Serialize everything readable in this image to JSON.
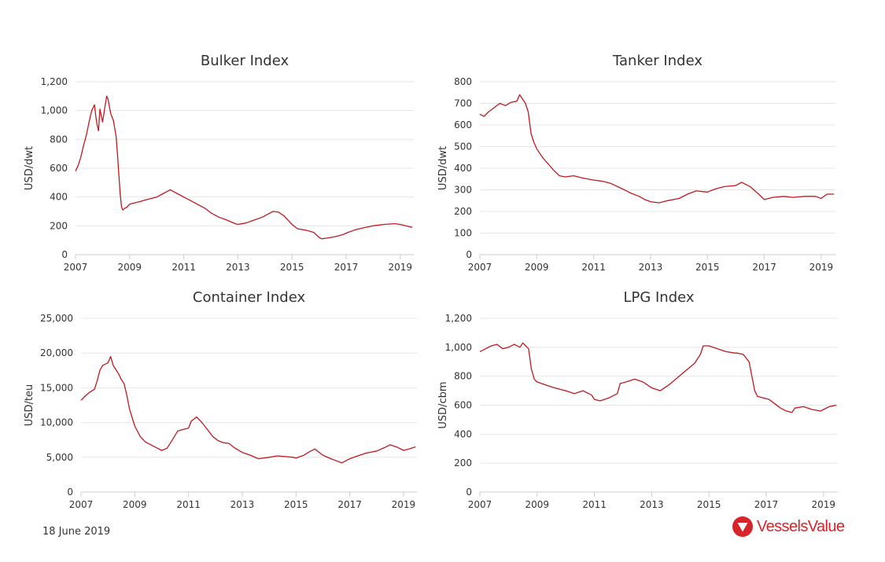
{
  "footer": {
    "date": "18 June 2019",
    "brand": "VesselsValue",
    "brand_color": "#d8232a"
  },
  "colors": {
    "series": "#c0191f",
    "grid": "#e6e6e6"
  },
  "chart_data": [
    {
      "id": "bulker",
      "type": "line",
      "title": "Bulker Index",
      "xlabel": "",
      "ylabel": "USD/dwt",
      "xlim": [
        2007.0,
        2019.5
      ],
      "ylim": [
        0,
        1200
      ],
      "yticks": [
        0,
        200,
        400,
        600,
        800,
        1000,
        1200
      ],
      "ytick_labels": [
        "0",
        "200",
        "400",
        "600",
        "800",
        "1,000",
        "1,200"
      ],
      "xticks": [
        2007,
        2009,
        2011,
        2013,
        2015,
        2017,
        2019
      ],
      "xtick_labels": [
        "2007",
        "2009",
        "2011",
        "2013",
        "2015",
        "2017",
        "2019"
      ],
      "grid": true,
      "series": [
        {
          "x": [
            2007.0,
            2007.1,
            2007.2,
            2007.3,
            2007.4,
            2007.5,
            2007.6,
            2007.7,
            2007.75,
            2007.8,
            2007.85,
            2007.9,
            2008.0,
            2008.1,
            2008.15,
            2008.2,
            2008.3,
            2008.4,
            2008.5,
            2008.55,
            2008.6,
            2008.65,
            2008.7,
            2008.75,
            2008.8,
            2008.9,
            2009.0,
            2009.2,
            2009.4,
            2009.6,
            2009.8,
            2010.0,
            2010.2,
            2010.4,
            2010.5,
            2010.6,
            2010.8,
            2011.0,
            2011.2,
            2011.5,
            2011.8,
            2012.0,
            2012.3,
            2012.6,
            2012.9,
            2013.0,
            2013.3,
            2013.6,
            2013.9,
            2014.1,
            2014.3,
            2014.5,
            2014.7,
            2014.9,
            2015.0,
            2015.2,
            2015.5,
            2015.8,
            2016.0,
            2016.1,
            2016.3,
            2016.6,
            2016.9,
            2017.0,
            2017.3,
            2017.6,
            2018.0,
            2018.4,
            2018.8,
            2019.0,
            2019.2,
            2019.45
          ],
          "y": [
            580,
            620,
            680,
            760,
            830,
            920,
            1000,
            1040,
            960,
            900,
            860,
            1010,
            920,
            1040,
            1100,
            1080,
            980,
            930,
            820,
            700,
            560,
            420,
            330,
            310,
            320,
            330,
            350,
            360,
            370,
            380,
            390,
            400,
            420,
            440,
            450,
            440,
            420,
            400,
            380,
            350,
            320,
            290,
            260,
            240,
            215,
            210,
            220,
            240,
            260,
            280,
            300,
            295,
            270,
            230,
            210,
            180,
            170,
            155,
            120,
            110,
            115,
            125,
            140,
            150,
            170,
            185,
            200,
            210,
            215,
            210,
            200,
            190
          ]
        }
      ]
    },
    {
      "id": "tanker",
      "type": "line",
      "title": "Tanker Index",
      "xlabel": "",
      "ylabel": "USD/dwt",
      "xlim": [
        2007.0,
        2019.5
      ],
      "ylim": [
        0,
        800
      ],
      "yticks": [
        0,
        100,
        200,
        300,
        400,
        500,
        600,
        700,
        800
      ],
      "ytick_labels": [
        "0",
        "100",
        "200",
        "300",
        "400",
        "500",
        "600",
        "700",
        "800"
      ],
      "xticks": [
        2007,
        2009,
        2011,
        2013,
        2015,
        2017,
        2019
      ],
      "xtick_labels": [
        "2007",
        "2009",
        "2011",
        "2013",
        "2015",
        "2017",
        "2019"
      ],
      "grid": true,
      "series": [
        {
          "x": [
            2007.0,
            2007.15,
            2007.3,
            2007.5,
            2007.7,
            2007.9,
            2008.1,
            2008.3,
            2008.4,
            2008.5,
            2008.6,
            2008.7,
            2008.8,
            2008.9,
            2009.0,
            2009.2,
            2009.4,
            2009.6,
            2009.8,
            2010.0,
            2010.3,
            2010.6,
            2011.0,
            2011.3,
            2011.6,
            2012.0,
            2012.3,
            2012.6,
            2012.8,
            2013.0,
            2013.3,
            2013.6,
            2014.0,
            2014.3,
            2014.6,
            2015.0,
            2015.3,
            2015.6,
            2016.0,
            2016.2,
            2016.5,
            2016.8,
            2017.0,
            2017.3,
            2017.7,
            2018.0,
            2018.4,
            2018.8,
            2019.0,
            2019.2,
            2019.45
          ],
          "y": [
            650,
            640,
            660,
            680,
            700,
            690,
            705,
            710,
            740,
            720,
            700,
            660,
            560,
            520,
            490,
            450,
            420,
            390,
            365,
            360,
            365,
            355,
            345,
            340,
            330,
            305,
            285,
            270,
            255,
            245,
            240,
            250,
            260,
            280,
            295,
            290,
            305,
            315,
            320,
            335,
            315,
            280,
            255,
            265,
            270,
            265,
            270,
            270,
            260,
            280,
            280
          ]
        }
      ]
    },
    {
      "id": "container",
      "type": "line",
      "title": "Container Index",
      "xlabel": "",
      "ylabel": "USD/teu",
      "xlim": [
        2007.0,
        2019.5
      ],
      "ylim": [
        0,
        25000
      ],
      "yticks": [
        0,
        5000,
        10000,
        15000,
        20000,
        25000
      ],
      "ytick_labels": [
        "0",
        "5,000",
        "10,000",
        "15,000",
        "20,000",
        "25,000"
      ],
      "xticks": [
        2007,
        2009,
        2011,
        2013,
        2015,
        2017,
        2019
      ],
      "xtick_labels": [
        "2007",
        "2009",
        "2011",
        "2013",
        "2015",
        "2017",
        "2019"
      ],
      "grid": true,
      "series": [
        {
          "x": [
            2007.0,
            2007.15,
            2007.3,
            2007.5,
            2007.6,
            2007.7,
            2007.8,
            2008.0,
            2008.1,
            2008.2,
            2008.3,
            2008.4,
            2008.5,
            2008.6,
            2008.7,
            2008.8,
            2009.0,
            2009.2,
            2009.4,
            2009.6,
            2009.8,
            2010.0,
            2010.2,
            2010.4,
            2010.6,
            2010.8,
            2011.0,
            2011.1,
            2011.3,
            2011.5,
            2011.7,
            2011.9,
            2012.1,
            2012.3,
            2012.5,
            2012.7,
            2013.0,
            2013.3,
            2013.6,
            2014.0,
            2014.3,
            2014.6,
            2014.9,
            2015.0,
            2015.3,
            2015.5,
            2015.7,
            2016.0,
            2016.3,
            2016.5,
            2016.7,
            2017.0,
            2017.3,
            2017.6,
            2018.0,
            2018.3,
            2018.5,
            2018.8,
            2019.0,
            2019.2,
            2019.45
          ],
          "y": [
            13200,
            13800,
            14300,
            14800,
            16000,
            17500,
            18200,
            18600,
            19500,
            18200,
            17600,
            17000,
            16200,
            15600,
            14000,
            12000,
            9500,
            8000,
            7200,
            6800,
            6400,
            6000,
            6300,
            7500,
            8800,
            9000,
            9200,
            10200,
            10800,
            10000,
            9000,
            8000,
            7400,
            7100,
            7000,
            6400,
            5700,
            5300,
            4800,
            5000,
            5200,
            5100,
            5000,
            4900,
            5300,
            5800,
            6200,
            5300,
            4800,
            4500,
            4200,
            4800,
            5200,
            5600,
            5900,
            6400,
            6800,
            6400,
            6000,
            6200,
            6500
          ]
        }
      ]
    },
    {
      "id": "lpg",
      "type": "line",
      "title": "LPG Index",
      "xlabel": "",
      "ylabel": "USD/cbm",
      "xlim": [
        2007.0,
        2019.5
      ],
      "ylim": [
        0,
        1200
      ],
      "yticks": [
        0,
        200,
        400,
        600,
        800,
        1000,
        1200
      ],
      "ytick_labels": [
        "0",
        "200",
        "400",
        "600",
        "800",
        "1,000",
        "1,200"
      ],
      "xticks": [
        2007,
        2009,
        2011,
        2013,
        2015,
        2017,
        2019
      ],
      "xtick_labels": [
        "2007",
        "2009",
        "2011",
        "2013",
        "2015",
        "2017",
        "2019"
      ],
      "grid": true,
      "series": [
        {
          "x": [
            2007.0,
            2007.2,
            2007.4,
            2007.6,
            2007.8,
            2008.0,
            2008.2,
            2008.4,
            2008.5,
            2008.6,
            2008.7,
            2008.8,
            2008.9,
            2009.0,
            2009.3,
            2009.6,
            2010.0,
            2010.3,
            2010.6,
            2010.9,
            2011.0,
            2011.2,
            2011.5,
            2011.8,
            2011.9,
            2012.1,
            2012.4,
            2012.7,
            2013.0,
            2013.3,
            2013.6,
            2013.9,
            2014.2,
            2014.5,
            2014.7,
            2014.8,
            2015.0,
            2015.3,
            2015.6,
            2015.9,
            2016.0,
            2016.2,
            2016.4,
            2016.5,
            2016.6,
            2016.7,
            2016.9,
            2017.1,
            2017.3,
            2017.5,
            2017.7,
            2017.9,
            2018.0,
            2018.3,
            2018.6,
            2018.9,
            2019.0,
            2019.2,
            2019.45
          ],
          "y": [
            970,
            990,
            1010,
            1020,
            990,
            1000,
            1020,
            1000,
            1030,
            1010,
            990,
            850,
            780,
            760,
            740,
            720,
            700,
            680,
            700,
            670,
            640,
            630,
            650,
            680,
            750,
            760,
            780,
            760,
            720,
            700,
            740,
            790,
            840,
            890,
            950,
            1010,
            1010,
            990,
            970,
            960,
            960,
            950,
            900,
            800,
            700,
            660,
            650,
            640,
            610,
            580,
            560,
            550,
            580,
            590,
            570,
            560,
            570,
            590,
            600
          ]
        }
      ]
    }
  ]
}
